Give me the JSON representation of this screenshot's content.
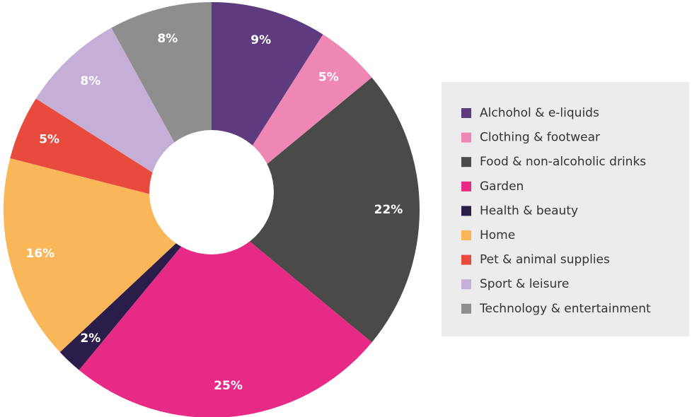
{
  "chart_data": {
    "type": "donut",
    "categories": [
      "Alchohol & e-liquids",
      "Clothing & footwear",
      "Food & non-alcoholic drinks",
      "Garden",
      "Health & beauty",
      "Home",
      "Pet & animal supplies",
      "Sport & leisure",
      "Technology & entertainment"
    ],
    "values": [
      9,
      5,
      22,
      25,
      2,
      16,
      5,
      8,
      8
    ],
    "value_labels": [
      "9%",
      "5%",
      "22%",
      "25%",
      "2%",
      "16%",
      "5%",
      "8%",
      "8%"
    ],
    "colors": [
      "#5e3a7e",
      "#ee87b4",
      "#4a4a48",
      "#e62a85",
      "#2b1d4a",
      "#f9b75a",
      "#e84b3e",
      "#c5afd6",
      "#8e8e8e"
    ],
    "legend": "right"
  }
}
